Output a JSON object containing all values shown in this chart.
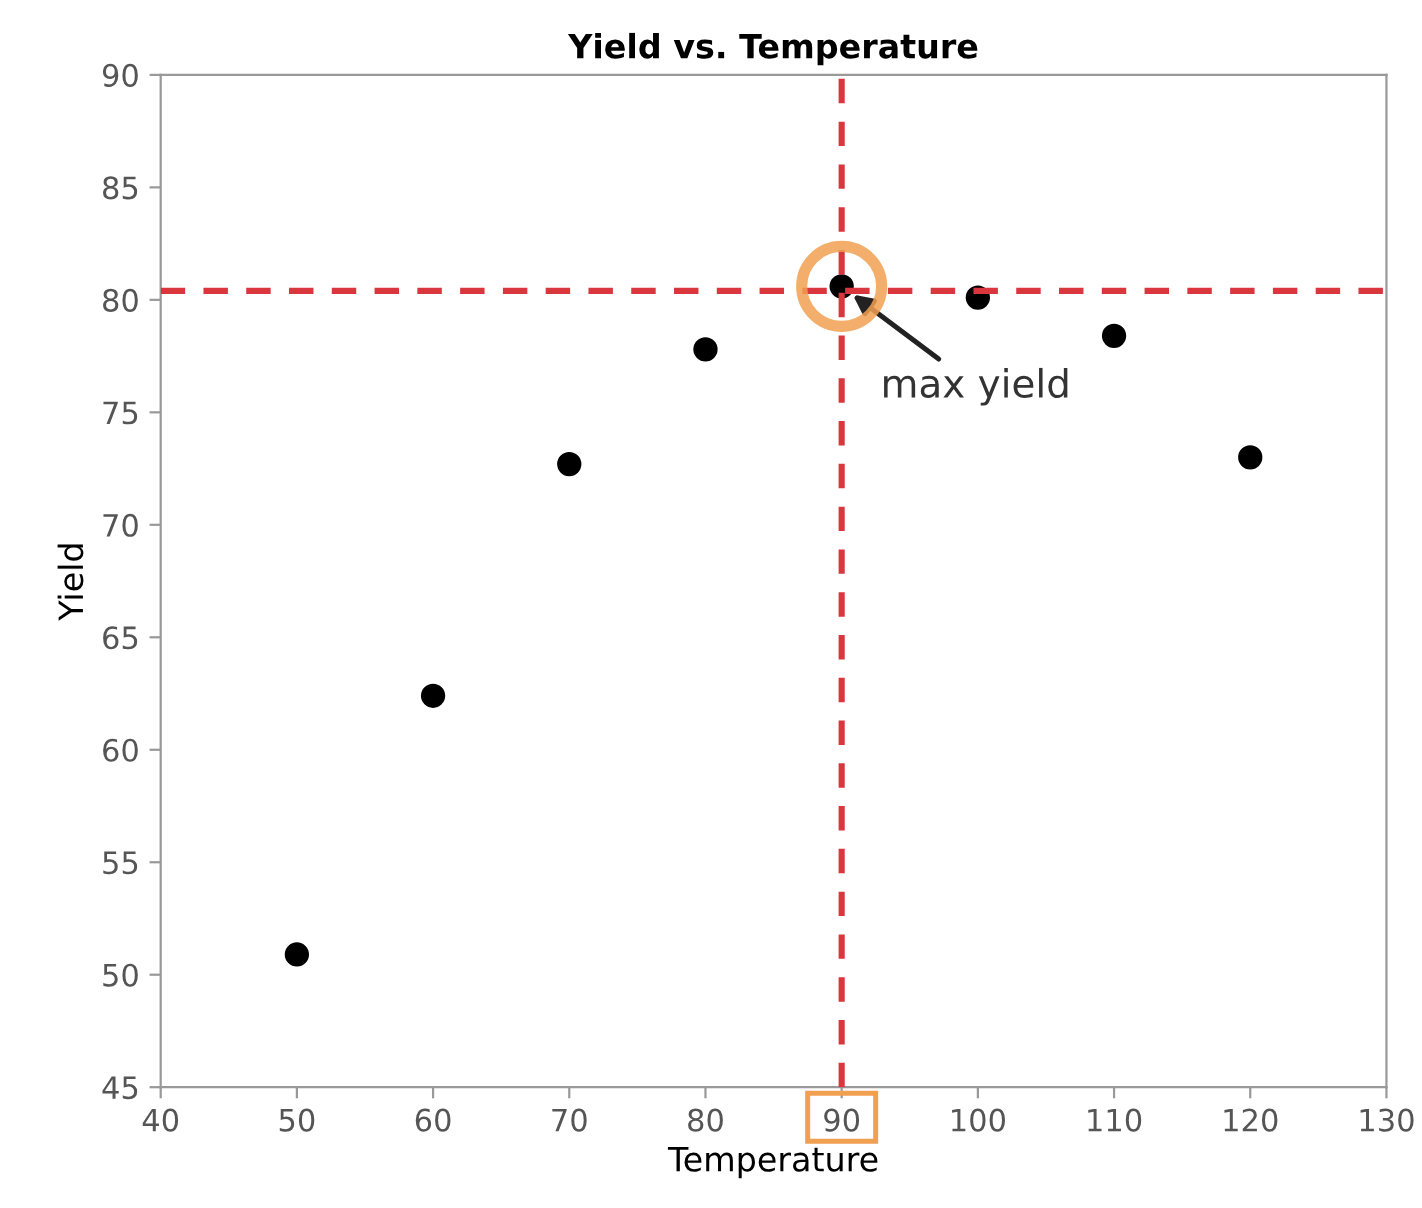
{
  "chart_data": {
    "type": "scatter",
    "title": "Yield vs. Temperature",
    "xlabel": "Temperature",
    "ylabel": "Yield",
    "x": [
      50,
      60,
      70,
      80,
      90,
      100,
      110,
      120
    ],
    "series": [
      {
        "color": "#000000",
        "values": [
          50.9,
          62.4,
          72.7,
          77.8,
          80.6,
          80.1,
          78.4,
          73.0
        ]
      }
    ],
    "marker": "circle",
    "xlim": [
      40,
      130
    ],
    "xticks": [
      40,
      50,
      60,
      70,
      80,
      90,
      100,
      110,
      120,
      130
    ],
    "ylim": [
      45,
      90
    ],
    "yticks": [
      45,
      50,
      55,
      60,
      65,
      70,
      75,
      80,
      85,
      90
    ],
    "grid": false,
    "ref_lines": [
      {
        "axis": "x",
        "value": 90,
        "color": "#d9363e",
        "line_style": "dashed"
      },
      {
        "axis": "y",
        "value": 80.4,
        "color": "#d9363e",
        "line_style": "dashed"
      }
    ],
    "annotations": [
      {
        "text": "max yield",
        "x": 90,
        "y": 80.6
      }
    ]
  }
}
